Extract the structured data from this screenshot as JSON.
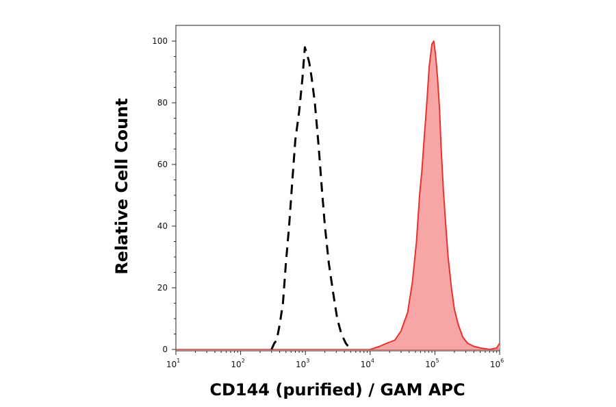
{
  "chart_data": {
    "type": "area",
    "xlabel": "CD144 (purified) / GAM APC",
    "ylabel": "Relative Cell Count",
    "xscale": "log",
    "xlim": [
      10,
      1000000
    ],
    "ylim": [
      0,
      100
    ],
    "yticks": [
      0,
      20,
      40,
      60,
      80,
      100
    ],
    "xticks": [
      {
        "base": "10",
        "exp": "1",
        "value": 10
      },
      {
        "base": "10",
        "exp": "2",
        "value": 100
      },
      {
        "base": "10",
        "exp": "3",
        "value": 1000
      },
      {
        "base": "10",
        "exp": "4",
        "value": 10000
      },
      {
        "base": "10",
        "exp": "5",
        "value": 100000
      },
      {
        "base": "10",
        "exp": "6",
        "value": 1000000
      }
    ],
    "grid": false,
    "series": [
      {
        "style": "dashed-outline",
        "color": "#000000",
        "points": [
          [
            300,
            0
          ],
          [
            330,
            2
          ],
          [
            360,
            3
          ],
          [
            400,
            8
          ],
          [
            450,
            15
          ],
          [
            500,
            28
          ],
          [
            560,
            40
          ],
          [
            630,
            55
          ],
          [
            700,
            68
          ],
          [
            800,
            77
          ],
          [
            900,
            88
          ],
          [
            980,
            98
          ],
          [
            1050,
            96
          ],
          [
            1150,
            93
          ],
          [
            1250,
            88
          ],
          [
            1400,
            80
          ],
          [
            1600,
            66
          ],
          [
            1800,
            52
          ],
          [
            2000,
            40
          ],
          [
            2300,
            28
          ],
          [
            2700,
            18
          ],
          [
            3100,
            10
          ],
          [
            3600,
            5
          ],
          [
            4200,
            2
          ],
          [
            5000,
            0
          ]
        ]
      },
      {
        "style": "filled",
        "color": "#e8302d",
        "fill": "#f8a5a5",
        "points": [
          [
            10000,
            0
          ],
          [
            14000,
            1
          ],
          [
            18000,
            2
          ],
          [
            24000,
            3
          ],
          [
            30000,
            6
          ],
          [
            38000,
            12
          ],
          [
            45000,
            22
          ],
          [
            52000,
            35
          ],
          [
            58000,
            50
          ],
          [
            63000,
            58
          ],
          [
            68000,
            68
          ],
          [
            75000,
            80
          ],
          [
            82000,
            92
          ],
          [
            90000,
            99
          ],
          [
            96000,
            100
          ],
          [
            102000,
            96
          ],
          [
            110000,
            88
          ],
          [
            118000,
            78
          ],
          [
            125000,
            65
          ],
          [
            135000,
            52
          ],
          [
            145000,
            42
          ],
          [
            160000,
            30
          ],
          [
            180000,
            20
          ],
          [
            200000,
            13
          ],
          [
            230000,
            8
          ],
          [
            270000,
            4
          ],
          [
            320000,
            2
          ],
          [
            400000,
            1
          ],
          [
            500000,
            0.5
          ],
          [
            700000,
            0
          ],
          [
            900000,
            0.5
          ],
          [
            1000000,
            2
          ]
        ]
      }
    ]
  }
}
